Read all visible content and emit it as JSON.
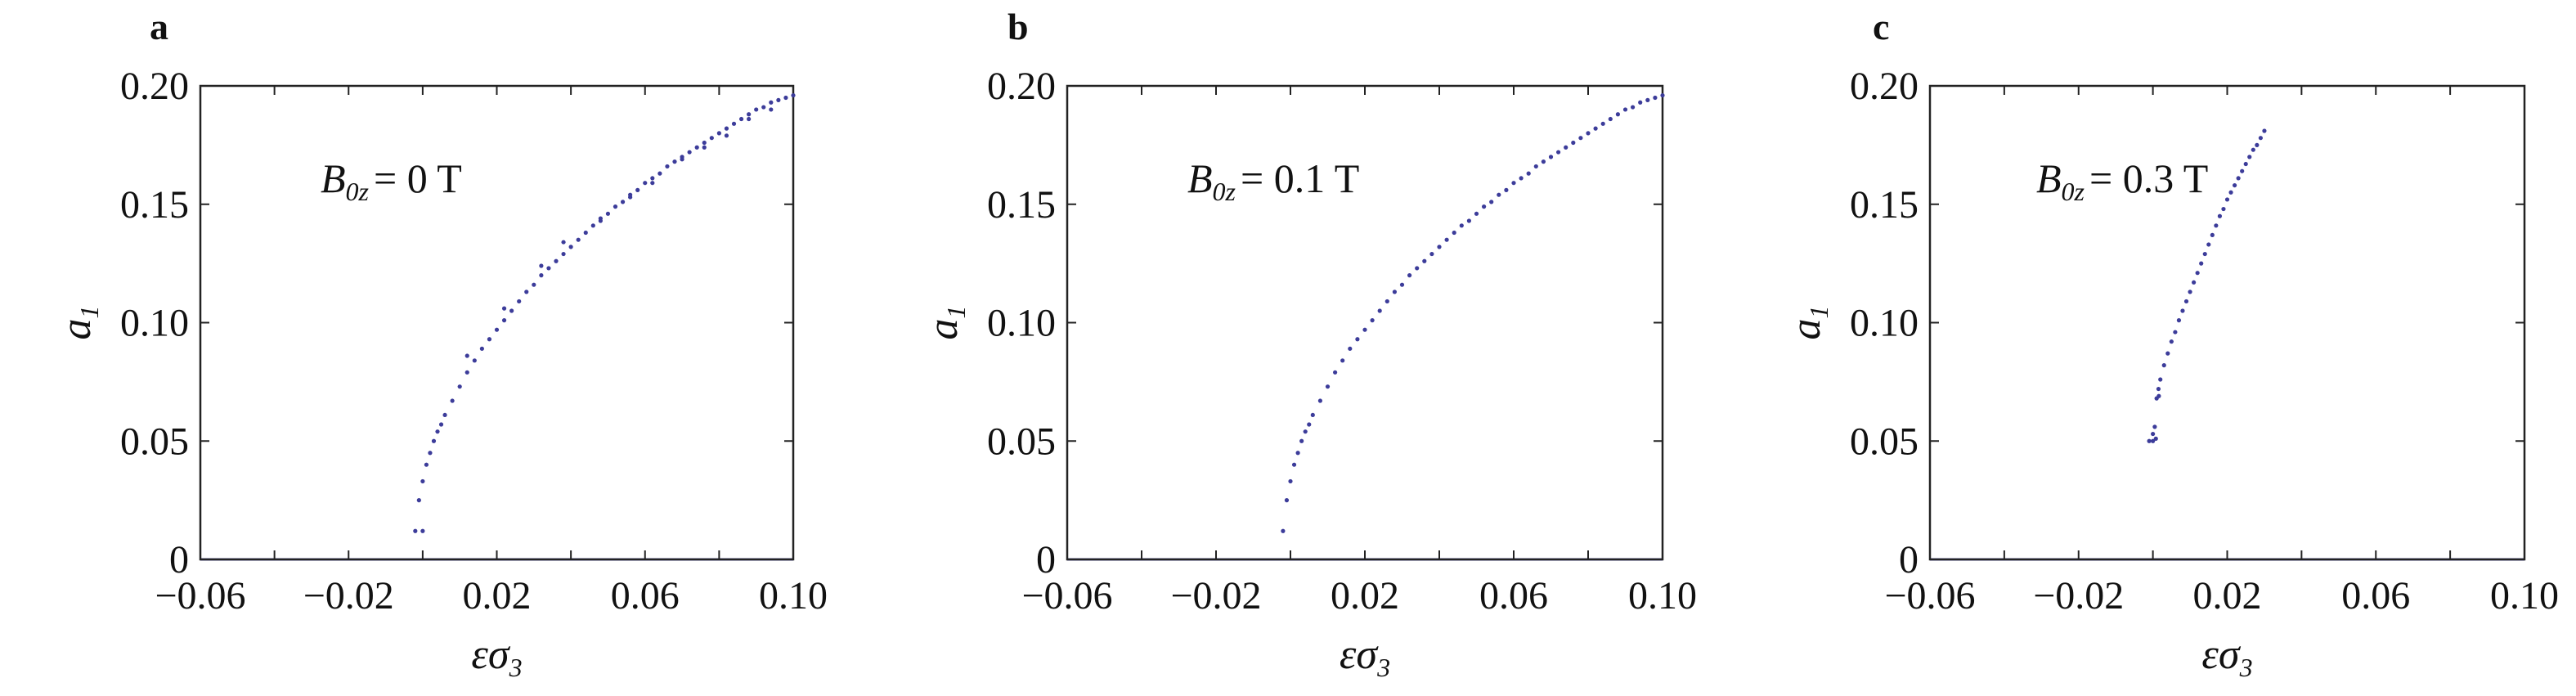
{
  "panels": [
    {
      "letter": "a",
      "annotation": {
        "symbol": "B",
        "subscript": "0z",
        "value": "= 0 T"
      }
    },
    {
      "letter": "b",
      "annotation": {
        "symbol": "B",
        "subscript": "0z",
        "value": "= 0.1 T"
      }
    },
    {
      "letter": "c",
      "annotation": {
        "symbol": "B",
        "subscript": "0z",
        "value": "= 0.3 T"
      }
    }
  ],
  "chart_data": [
    {
      "type": "scatter",
      "title": "",
      "xlabel": {
        "main": "εσ",
        "sub": "3"
      },
      "ylabel": {
        "main": "a",
        "sub": "1"
      },
      "xlim": [
        -0.06,
        0.1
      ],
      "ylim": [
        0,
        0.2
      ],
      "xticks": [
        -0.06,
        -0.02,
        0.02,
        0.06,
        0.1
      ],
      "xtick_labels": [
        "−0.06",
        "−0.02",
        "0.02",
        "0.06",
        "0.10"
      ],
      "yticks": [
        0,
        0.05,
        0.1,
        0.15,
        0.2
      ],
      "ytick_labels": [
        "0",
        "0.05",
        "0.10",
        "0.15",
        "0.20"
      ],
      "grid": false,
      "marker_color": "#3c3c9a",
      "baseline": {
        "y": 0,
        "color": "#5a5ab0"
      },
      "series": [
        {
          "x": [
            -0.002,
            -0.001,
            0.0,
            0.001,
            0.002,
            0.003,
            0.004,
            0.005,
            0.006,
            0.008,
            0.01,
            0.012,
            0.014,
            0.016,
            0.018,
            0.02,
            0.022,
            0.024,
            0.026,
            0.028,
            0.03,
            0.032,
            0.034,
            0.036,
            0.038,
            0.04,
            0.042,
            0.044,
            0.046,
            0.048,
            0.05,
            0.052,
            0.054,
            0.056,
            0.058,
            0.06,
            0.062,
            0.064,
            0.066,
            0.068,
            0.07,
            0.072,
            0.074,
            0.076,
            0.078,
            0.08,
            0.082,
            0.084,
            0.086,
            0.088,
            0.09,
            0.092,
            0.094,
            0.096,
            0.098,
            0.1
          ],
          "y": [
            0.012,
            0.025,
            0.033,
            0.04,
            0.045,
            0.05,
            0.054,
            0.057,
            0.061,
            0.067,
            0.073,
            0.079,
            0.084,
            0.089,
            0.093,
            0.097,
            0.101,
            0.105,
            0.109,
            0.113,
            0.116,
            0.12,
            0.123,
            0.126,
            0.129,
            0.132,
            0.135,
            0.138,
            0.141,
            0.143,
            0.146,
            0.149,
            0.151,
            0.154,
            0.156,
            0.159,
            0.161,
            0.163,
            0.166,
            0.168,
            0.17,
            0.172,
            0.174,
            0.176,
            0.178,
            0.18,
            0.182,
            0.184,
            0.186,
            0.188,
            0.19,
            0.191,
            0.193,
            0.194,
            0.195,
            0.196
          ]
        },
        {
          "x": [
            0.0,
            0.012,
            0.022,
            0.032,
            0.038,
            0.048,
            0.056,
            0.062,
            0.07,
            0.076,
            0.082,
            0.088,
            0.094
          ],
          "y": [
            0.012,
            0.086,
            0.106,
            0.124,
            0.134,
            0.144,
            0.153,
            0.159,
            0.169,
            0.174,
            0.179,
            0.186,
            0.19
          ]
        }
      ]
    },
    {
      "type": "scatter",
      "title": "",
      "xlabel": {
        "main": "εσ",
        "sub": "3"
      },
      "ylabel": {
        "main": "a",
        "sub": "1"
      },
      "xlim": [
        -0.06,
        0.1
      ],
      "ylim": [
        0,
        0.2
      ],
      "xticks": [
        -0.06,
        -0.02,
        0.02,
        0.06,
        0.1
      ],
      "xtick_labels": [
        "−0.06",
        "−0.02",
        "0.02",
        "0.06",
        "0.10"
      ],
      "yticks": [
        0,
        0.05,
        0.1,
        0.15,
        0.2
      ],
      "ytick_labels": [
        "0",
        "0.05",
        "0.10",
        "0.15",
        "0.20"
      ],
      "grid": false,
      "marker_color": "#3c3c9a",
      "baseline": {
        "y": 0,
        "color": "#5a5ab0"
      },
      "series": [
        {
          "x": [
            -0.002,
            -0.001,
            0.0,
            0.001,
            0.002,
            0.003,
            0.004,
            0.005,
            0.006,
            0.008,
            0.01,
            0.012,
            0.014,
            0.016,
            0.018,
            0.02,
            0.022,
            0.024,
            0.026,
            0.028,
            0.03,
            0.032,
            0.034,
            0.036,
            0.038,
            0.04,
            0.042,
            0.044,
            0.046,
            0.048,
            0.05,
            0.052,
            0.054,
            0.056,
            0.058,
            0.06,
            0.062,
            0.064,
            0.066,
            0.068,
            0.07,
            0.072,
            0.074,
            0.076,
            0.078,
            0.08,
            0.082,
            0.084,
            0.086,
            0.088,
            0.09,
            0.092,
            0.094,
            0.096,
            0.098,
            0.1
          ],
          "y": [
            0.012,
            0.025,
            0.033,
            0.04,
            0.045,
            0.05,
            0.054,
            0.057,
            0.061,
            0.067,
            0.073,
            0.079,
            0.084,
            0.089,
            0.093,
            0.097,
            0.101,
            0.105,
            0.109,
            0.113,
            0.116,
            0.12,
            0.123,
            0.126,
            0.129,
            0.132,
            0.135,
            0.138,
            0.141,
            0.143,
            0.146,
            0.149,
            0.151,
            0.154,
            0.156,
            0.159,
            0.161,
            0.163,
            0.166,
            0.168,
            0.17,
            0.172,
            0.174,
            0.176,
            0.178,
            0.18,
            0.182,
            0.184,
            0.186,
            0.188,
            0.19,
            0.191,
            0.193,
            0.194,
            0.195,
            0.196
          ]
        }
      ]
    },
    {
      "type": "scatter",
      "title": "",
      "xlabel": {
        "main": "εσ",
        "sub": "3"
      },
      "ylabel": {
        "main": "a",
        "sub": "1"
      },
      "xlim": [
        -0.06,
        0.1
      ],
      "ylim": [
        0,
        0.2
      ],
      "xticks": [
        -0.06,
        -0.02,
        0.02,
        0.06,
        0.1
      ],
      "xtick_labels": [
        "−0.06",
        "−0.02",
        "0.02",
        "0.06",
        "0.10"
      ],
      "yticks": [
        0,
        0.05,
        0.1,
        0.15,
        0.2
      ],
      "ytick_labels": [
        "0",
        "0.05",
        "0.10",
        "0.15",
        "0.20"
      ],
      "grid": false,
      "marker_color": "#3c3c9a",
      "baseline": {
        "y": 0,
        "color": "#5a5ab0"
      },
      "series": [
        {
          "x": [
            -0.001,
            0.0,
            0.0005,
            0.001,
            0.0015,
            0.002,
            0.003,
            0.004,
            0.005,
            0.006,
            0.007,
            0.008,
            0.009,
            0.01,
            0.011,
            0.012,
            0.013,
            0.014,
            0.015,
            0.016,
            0.017,
            0.018,
            0.019,
            0.02,
            0.021,
            0.022,
            0.023,
            0.024,
            0.025,
            0.026,
            0.027,
            0.028,
            0.029,
            0.03
          ],
          "y": [
            0.05,
            0.053,
            0.056,
            0.068,
            0.072,
            0.076,
            0.082,
            0.087,
            0.092,
            0.096,
            0.101,
            0.105,
            0.109,
            0.113,
            0.117,
            0.121,
            0.125,
            0.129,
            0.133,
            0.137,
            0.141,
            0.145,
            0.148,
            0.152,
            0.155,
            0.158,
            0.161,
            0.164,
            0.167,
            0.17,
            0.173,
            0.175,
            0.178,
            0.181
          ]
        },
        {
          "x": [
            0.0,
            0.0008,
            0.0016
          ],
          "y": [
            0.05,
            0.051,
            0.069
          ]
        }
      ]
    }
  ]
}
